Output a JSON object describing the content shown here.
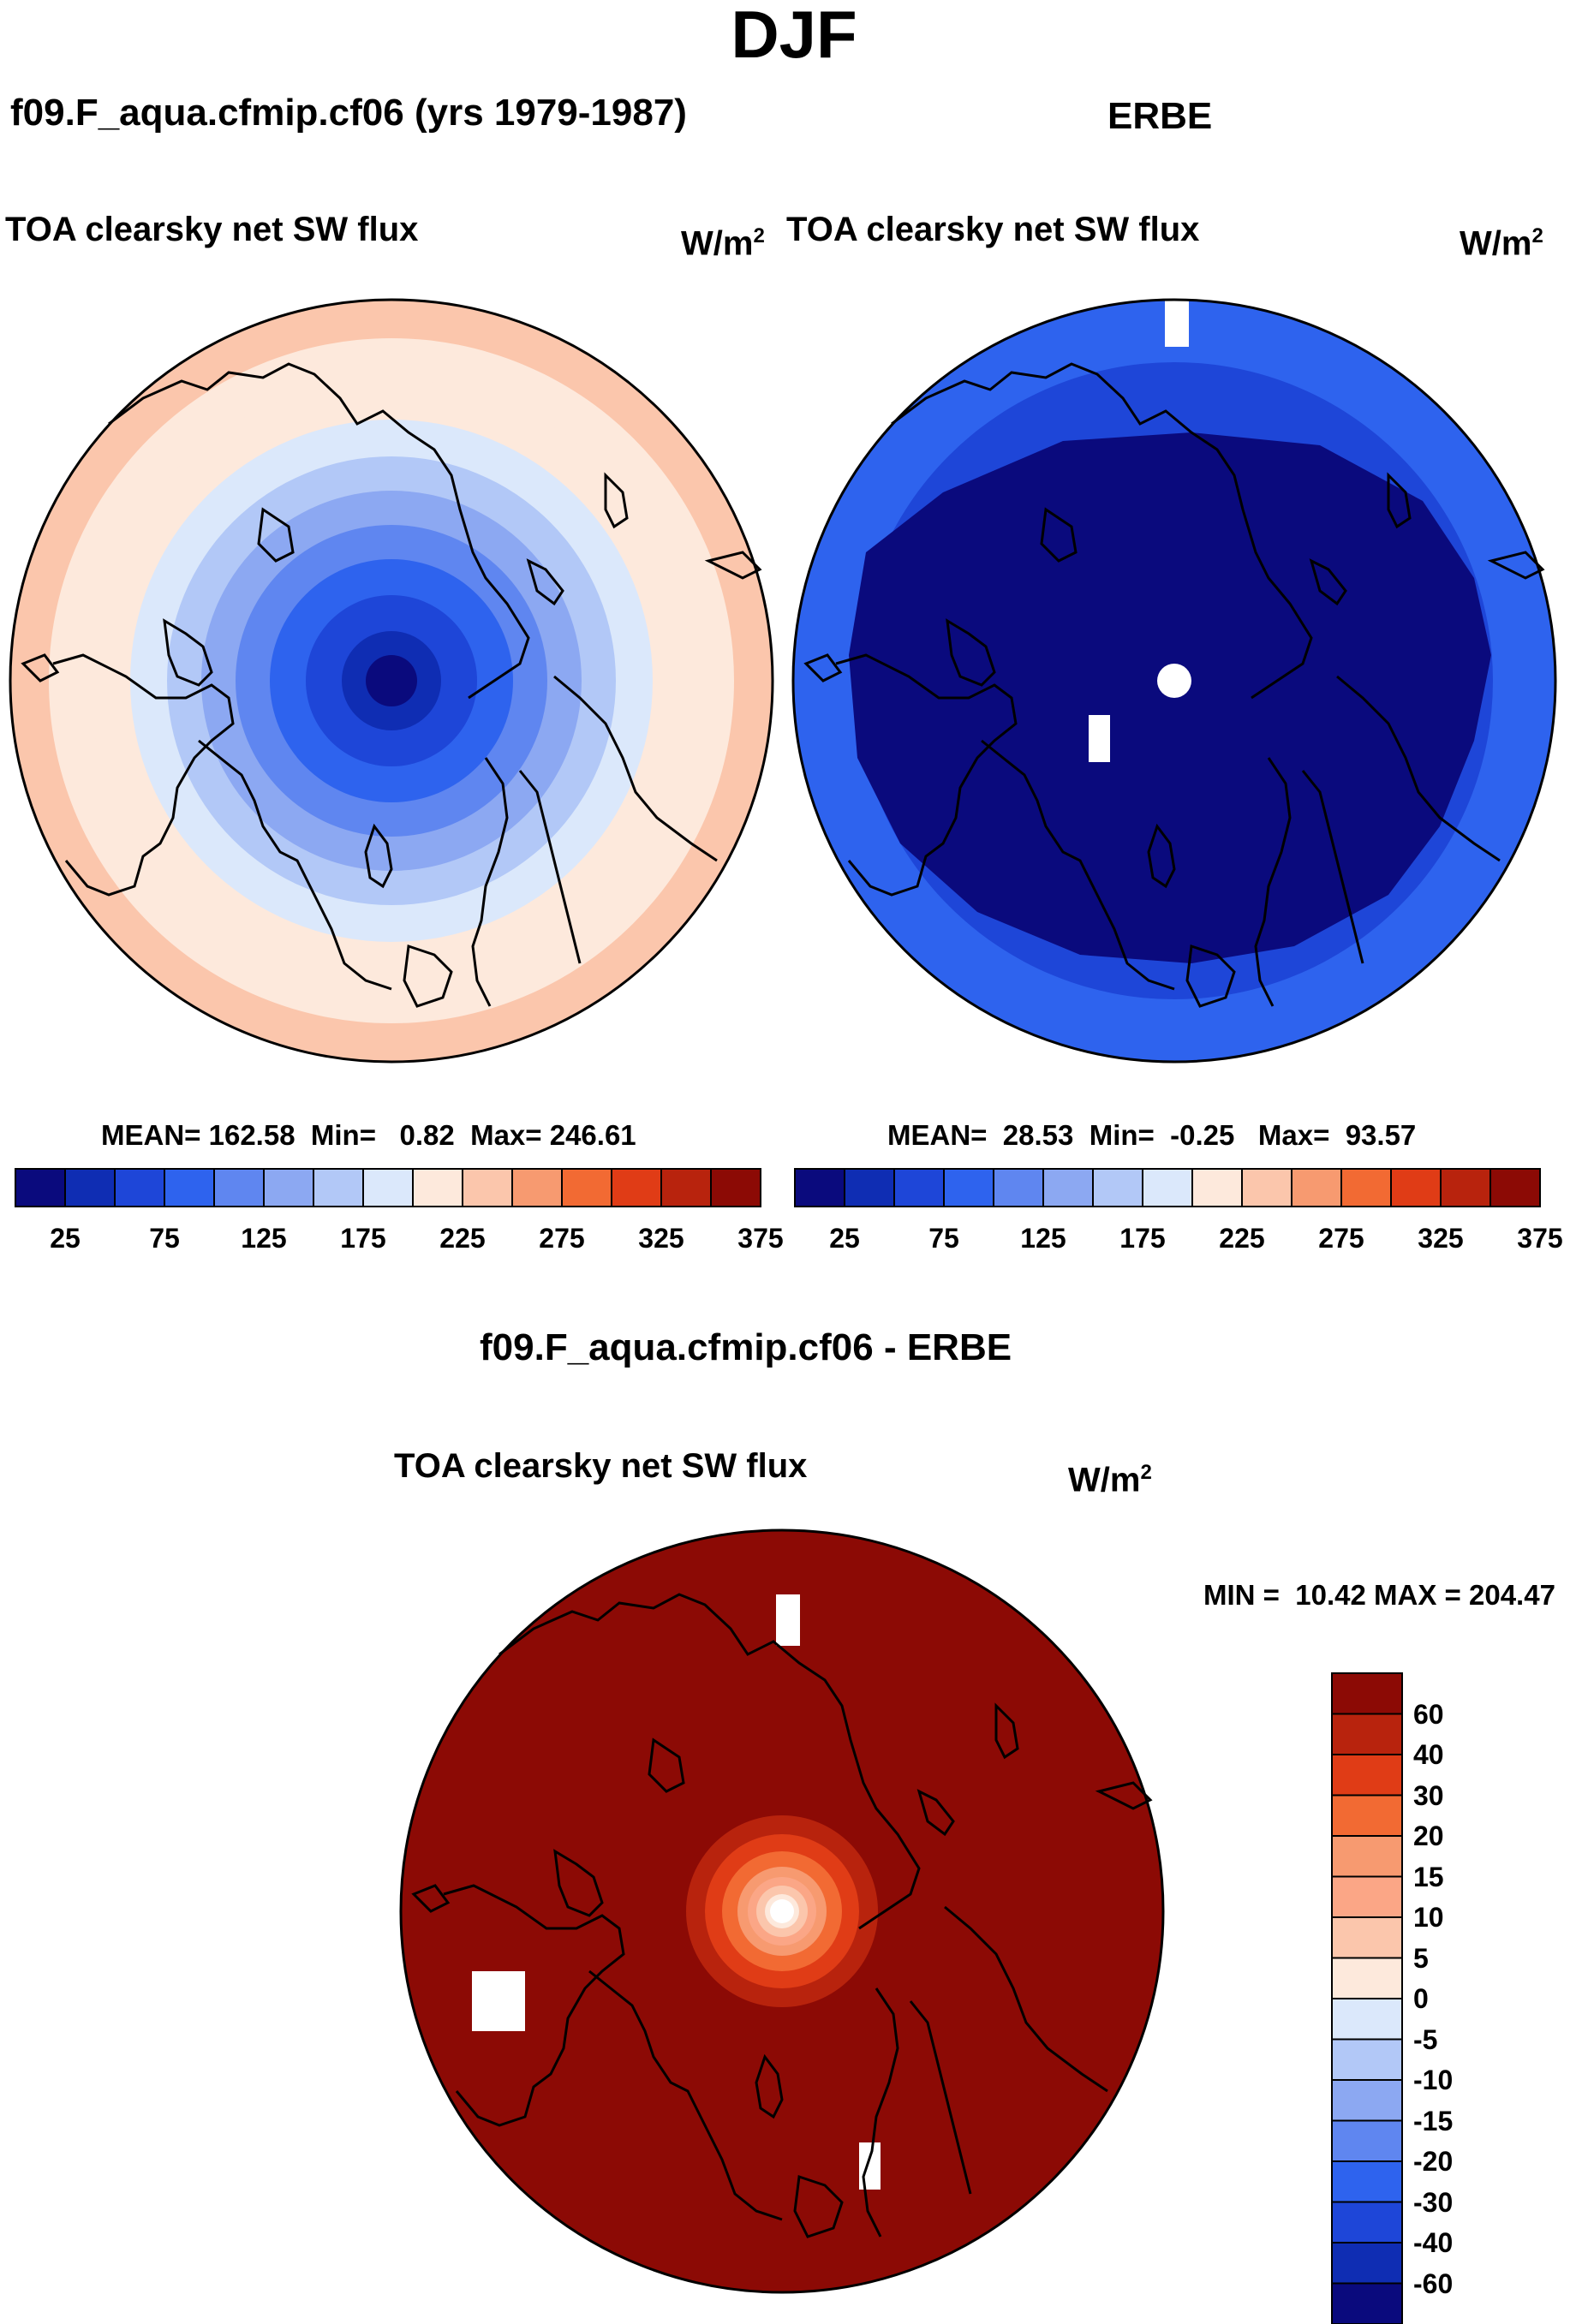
{
  "title": "DJF",
  "panels": {
    "model": {
      "title": "f09.F_aqua.cfmip.cf06 (yrs 1979-1987)",
      "field": "TOA clearsky net SW flux",
      "units_base": "W/m",
      "units_exp": "2",
      "stats": {
        "mean_label": "MEAN=",
        "mean": "162.58",
        "min_label": "Min=",
        "min": "0.82",
        "max_label": "Max=",
        "max": "246.61"
      }
    },
    "obs": {
      "title": "ERBE",
      "field": "TOA clearsky net SW flux",
      "units_base": "W/m",
      "units_exp": "2",
      "stats": {
        "mean_label": "MEAN=",
        "mean": "28.53",
        "min_label": "Min=",
        "min": "-0.25",
        "max_label": "Max=",
        "max": "93.57"
      }
    },
    "diff": {
      "title": "f09.F_aqua.cfmip.cf06 - ERBE",
      "field": "TOA clearsky net SW flux",
      "units_base": "W/m",
      "units_exp": "2",
      "stats": {
        "min_label": "MIN =",
        "min": "10.42",
        "max_label": "MAX =",
        "max": "204.47"
      }
    }
  },
  "colorbar_main": {
    "colors": [
      "#0a0a7d",
      "#0f2db3",
      "#1e46d8",
      "#2e63ee",
      "#5f86f0",
      "#8ca8f2",
      "#b2c8f7",
      "#dbe8fb",
      "#fde9dc",
      "#fbc6ac",
      "#f79a70",
      "#f26a33",
      "#e03c16",
      "#b8230d",
      "#8c0a05"
    ],
    "tick_labels": [
      "25",
      "75",
      "125",
      "175",
      "225",
      "275",
      "325",
      "375"
    ]
  },
  "colorbar_diff": {
    "colors": [
      "#8c0a05",
      "#b8230d",
      "#e03c16",
      "#f26a33",
      "#f79a70",
      "#fba686",
      "#fbc6ac",
      "#fde9dc",
      "#dbe8fb",
      "#b2c8f7",
      "#8ca8f2",
      "#5f86f0",
      "#2e63ee",
      "#1e46d8",
      "#0f2db3",
      "#0a0a7d"
    ],
    "tick_labels": [
      "60",
      "40",
      "30",
      "20",
      "15",
      "10",
      "5",
      "0",
      "-5",
      "-10",
      "-15",
      "-20",
      "-30",
      "-40",
      "-60"
    ]
  },
  "chart_data": [
    {
      "type": "heatmap",
      "projection": "polar stereographic (North Pole)",
      "title": "f09.F_aqua.cfmip.cf06 (yrs 1979-1987)",
      "field": "TOA clearsky net SW flux",
      "units": "W/m2",
      "mean": 162.58,
      "min": 0.82,
      "max": 246.61,
      "contour_levels": [
        25,
        50,
        75,
        100,
        125,
        150,
        175,
        200,
        225,
        250,
        275,
        300,
        325,
        350,
        375
      ]
    },
    {
      "type": "heatmap",
      "projection": "polar stereographic (North Pole)",
      "title": "ERBE",
      "field": "TOA clearsky net SW flux",
      "units": "W/m2",
      "mean": 28.53,
      "min": -0.25,
      "max": 93.57,
      "contour_levels": [
        25,
        50,
        75,
        100,
        125,
        150,
        175,
        200,
        225,
        250,
        275,
        300,
        325,
        350,
        375
      ]
    },
    {
      "type": "heatmap",
      "projection": "polar stereographic (North Pole)",
      "title": "f09.F_aqua.cfmip.cf06 - ERBE",
      "field": "TOA clearsky net SW flux",
      "units": "W/m2",
      "min": 10.42,
      "max": 204.47,
      "contour_levels": [
        -60,
        -40,
        -30,
        -20,
        -15,
        -10,
        -5,
        0,
        5,
        10,
        15,
        20,
        30,
        40,
        60
      ]
    }
  ]
}
